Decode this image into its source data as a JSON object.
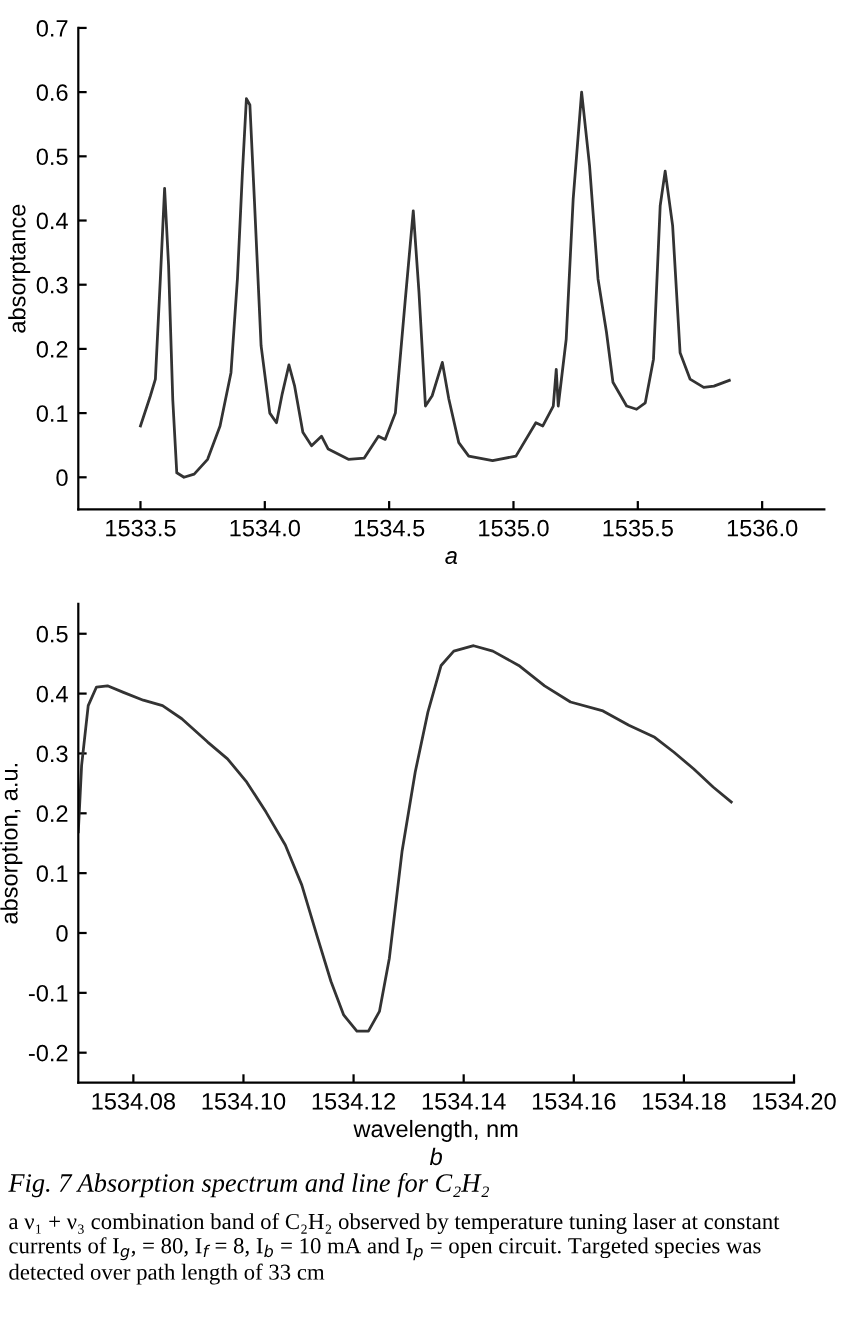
{
  "chart_data": [
    {
      "type": "line",
      "ylabel": "absorptance",
      "xlabel": "a",
      "xlim": [
        1533.25,
        1536.25
      ],
      "ylim": [
        -0.05,
        0.7
      ],
      "xticks": [
        1533.5,
        {
          "value": 1534.0,
          "label": "1534.0"
        },
        1534.5,
        {
          "value": 1535.0,
          "label": "1535.0"
        },
        1535.5,
        {
          "value": 1536.0,
          "label": "1536.0"
        }
      ],
      "yticks": [
        0,
        0.1,
        0.2,
        0.3,
        0.4,
        0.5,
        0.6,
        0.7
      ],
      "grid": false,
      "marker": "none",
      "line_style": "solid",
      "series": [
        {
          "color": "#333333",
          "x": [
            1533.5,
            1533.54,
            1533.56,
            1533.58,
            1533.597,
            1533.613,
            1533.63,
            1533.646,
            1533.675,
            1533.716,
            1533.77,
            1533.82,
            1533.864,
            1533.89,
            1533.91,
            1533.926,
            1533.94,
            1533.958,
            1533.985,
            1534.02,
            1534.047,
            1534.07,
            1534.097,
            1534.12,
            1534.153,
            1534.188,
            1534.228,
            1534.255,
            1534.336,
            1534.4,
            1534.457,
            1534.484,
            1534.525,
            1534.565,
            1534.597,
            1534.62,
            1534.646,
            1534.673,
            1534.714,
            1534.74,
            1534.78,
            1534.82,
            1534.916,
            1535.01,
            1535.09,
            1535.118,
            1535.16,
            1535.172,
            1535.18,
            1535.212,
            1535.24,
            1535.274,
            1535.306,
            1535.34,
            1535.374,
            1535.4,
            1535.455,
            1535.495,
            1535.53,
            1535.563,
            1535.59,
            1535.61,
            1535.64,
            1535.67,
            1535.71,
            1535.765,
            1535.806,
            1535.868
          ],
          "values": [
            0.08,
            0.127,
            0.153,
            0.31,
            0.45,
            0.33,
            0.12,
            0.007,
            0.0,
            0.005,
            0.028,
            0.08,
            0.163,
            0.31,
            0.475,
            0.59,
            0.58,
            0.433,
            0.205,
            0.1,
            0.085,
            0.13,
            0.175,
            0.142,
            0.07,
            0.049,
            0.064,
            0.044,
            0.028,
            0.03,
            0.064,
            0.059,
            0.1,
            0.277,
            0.415,
            0.288,
            0.111,
            0.127,
            0.179,
            0.122,
            0.054,
            0.033,
            0.026,
            0.033,
            0.085,
            0.08,
            0.111,
            0.168,
            0.111,
            0.215,
            0.433,
            0.6,
            0.485,
            0.309,
            0.226,
            0.148,
            0.111,
            0.106,
            0.116,
            0.184,
            0.423,
            0.477,
            0.392,
            0.194,
            0.153,
            0.14,
            0.142,
            0.151
          ]
        }
      ]
    },
    {
      "type": "line",
      "ylabel": "absorption, a.u.",
      "xlabel": "wavelength, nm",
      "xlim": [
        1534.07,
        1534.2
      ],
      "ylim": [
        -0.25,
        0.55
      ],
      "xticks": [
        1534.08,
        {
          "value": 1534.1,
          "label": "1534.10"
        },
        1534.12,
        1534.14,
        1534.16,
        1534.18,
        {
          "value": 1534.2,
          "label": "1534.20"
        }
      ],
      "yticks": [
        -0.2,
        -0.1,
        0,
        0.1,
        0.2,
        0.3,
        0.4,
        0.5
      ],
      "grid": false,
      "marker": "none",
      "line_style": "solid",
      "annotations": [
        "b",
        "Fig. 7 Absorption spectrum and line for C₂H₂",
        "a ν₁ + ν₃ combination band of C₂H₂ observed by temperature tuning laser at constant currents of I$_{g}$, = 80, I$_{f}$ = 8, I$_{b}$ = 10 mA and I$_{p}$ = open circuit. Targeted species was detected over path length of 33 cm"
      ],
      "series": [
        {
          "color": "#333333",
          "x": [
            1534.07,
            1534.0706,
            1534.0718,
            1534.0733,
            1534.0753,
            1534.0782,
            1534.0818,
            1534.0853,
            1534.0888,
            1534.0935,
            1534.0971,
            1534.1006,
            1534.1041,
            1534.1076,
            1534.1106,
            1534.1135,
            1534.1159,
            1534.1182,
            1534.1206,
            1534.1227,
            1534.1247,
            1534.1265,
            1534.1288,
            1534.1312,
            1534.1335,
            1534.1359,
            1534.1382,
            1534.1418,
            1534.1453,
            1534.15,
            1534.1547,
            1534.1594,
            1534.1653,
            1534.17,
            1534.1747,
            1534.1782,
            1534.1818,
            1534.1853,
            1534.1886
          ],
          "values": [
            0.169,
            0.28,
            0.38,
            0.411,
            0.413,
            0.402,
            0.389,
            0.38,
            0.358,
            0.319,
            0.291,
            0.252,
            0.202,
            0.147,
            0.08,
            -0.009,
            -0.081,
            -0.137,
            -0.164,
            -0.164,
            -0.131,
            -0.042,
            0.136,
            0.269,
            0.369,
            0.447,
            0.471,
            0.48,
            0.471,
            0.447,
            0.413,
            0.386,
            0.371,
            0.347,
            0.327,
            0.302,
            0.274,
            0.244,
            0.219
          ]
        }
      ]
    }
  ]
}
